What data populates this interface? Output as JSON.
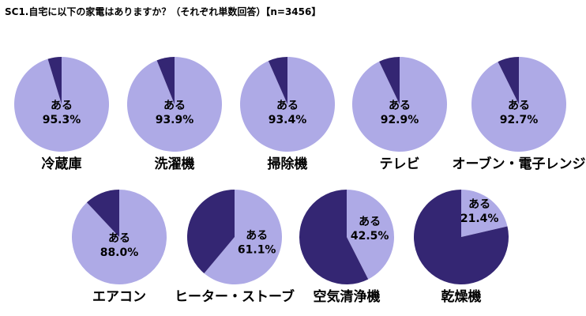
{
  "title": "SC1.自宅に以下の家電はありますか？（それぞれ単数回答）【n=3456】",
  "colors": {
    "yes": "#aeaae6",
    "no": "#342673",
    "highlight_label": "#342673",
    "label": "#000000"
  },
  "chart_data": {
    "type": "pie",
    "title": "SC1.自宅に以下の家電はありますか？（それぞれ単数回答）【n=3456】",
    "slice_label": "ある",
    "unit": "%",
    "series": [
      {
        "name": "冷蔵庫",
        "yes": 95.3
      },
      {
        "name": "洗濯機",
        "yes": 93.9
      },
      {
        "name": "掃除機",
        "yes": 93.4
      },
      {
        "name": "テレビ",
        "yes": 92.9
      },
      {
        "name": "オーブン・電子レンジ",
        "yes": 92.7
      },
      {
        "name": "エアコン",
        "yes": 88.0,
        "highlight": true
      },
      {
        "name": "ヒーター・ストーブ",
        "yes": 61.1
      },
      {
        "name": "空気清浄機",
        "yes": 42.5
      },
      {
        "name": "乾燥機",
        "yes": 21.4
      }
    ]
  }
}
